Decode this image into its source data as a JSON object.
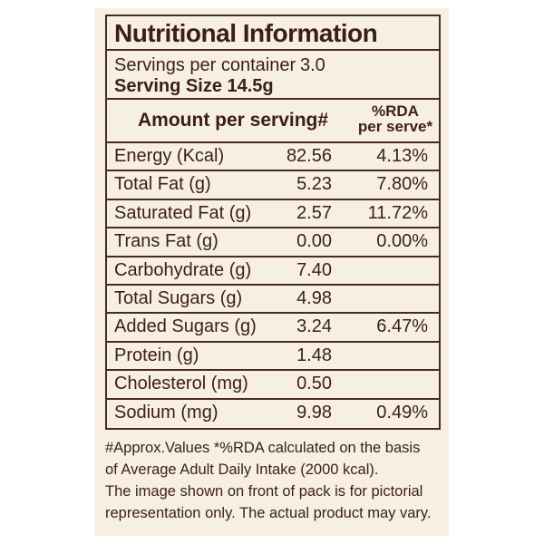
{
  "title": "Nutritional Information",
  "servings": {
    "label": "Servings per container",
    "value": "3.0"
  },
  "serving_size": "Serving Size 14.5g",
  "header": {
    "amount": "Amount per serving#",
    "rda_line1": "%RDA",
    "rda_line2": "per serve*"
  },
  "nutrients": [
    {
      "name": "Energy (Kcal)",
      "amount": "82.56",
      "rda": "4.13%"
    },
    {
      "name": "Total Fat (g)",
      "amount": "5.23",
      "rda": "7.80%"
    },
    {
      "name": "Saturated Fat (g)",
      "amount": "2.57",
      "rda": "11.72%"
    },
    {
      "name": "Trans Fat (g)",
      "amount": "0.00",
      "rda": "0.00%"
    },
    {
      "name": "Carbohydrate (g)",
      "amount": "7.40",
      "rda": ""
    },
    {
      "name": "Total Sugars (g)",
      "amount": "4.98",
      "rda": ""
    },
    {
      "name": "Added Sugars (g)",
      "amount": "3.24",
      "rda": "6.47%"
    },
    {
      "name": "Protein (g)",
      "amount": "1.48",
      "rda": ""
    },
    {
      "name": "Cholesterol (mg)",
      "amount": "0.50",
      "rda": ""
    },
    {
      "name": "Sodium (mg)",
      "amount": "9.98",
      "rda": "0.49%"
    }
  ],
  "footnote": [
    "#Approx.Values *%RDA calculated on the basis",
    "of Average Adult Daily Intake (2000 kcal).",
    "The image shown on front of pack is for pictorial",
    "representation only. The actual product may vary."
  ]
}
